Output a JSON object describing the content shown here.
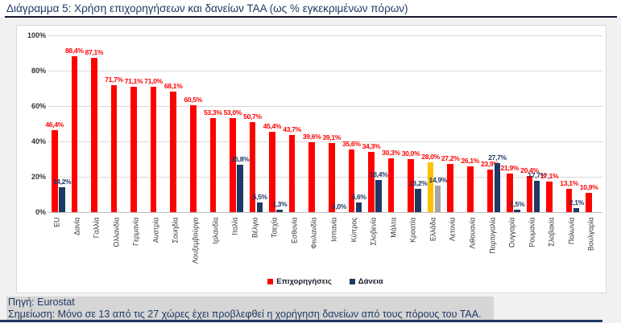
{
  "title": "Διάγραμμα 5: Χρήση επιχορηγήσεων και δανείων ΤΑΑ (ως % εγκεκριμένων πόρων)",
  "legend": {
    "grants": "Επιχορηγήσεις",
    "loans": "Δάνεια"
  },
  "colors": {
    "grants": "#FF0000",
    "loans": "#1F3864",
    "grants_highlight": "#FFC000",
    "loans_highlight": "#A6A6A6",
    "grid": "#D9D9D9",
    "accent_text": "#1F3864"
  },
  "footer": {
    "source": "Πηγή: Eurostat",
    "note": "Σημείωση: Μόνο σε 13 από τις 27 χώρες έχει προβλεφθεί η χορήγηση δανείων από τους πόρους του ΤΑΑ."
  },
  "chart_data": {
    "type": "bar",
    "title": "Διάγραμμα 5: Χρήση επιχορηγήσεων και δανείων ΤΑΑ (ως % εγκεκριμένων πόρων)",
    "xlabel": "",
    "ylabel": "",
    "ylim": [
      0,
      100
    ],
    "grid": true,
    "legend_position": "bottom",
    "value_format": "comma-decimal-percent",
    "ytick_values": [
      0,
      20,
      40,
      60,
      80,
      100
    ],
    "ytick_labels": [
      "0%",
      "20%",
      "40%",
      "60%",
      "80%",
      "100%"
    ],
    "highlight_category": "Ελλάδα",
    "categories": [
      "EU",
      "Δανία",
      "Γαλλία",
      "Ολλανδία",
      "Γερμανία",
      "Αυστρία",
      "Σουηδία",
      "Λουξεμβούργο",
      "Ιρλανδία",
      "Ιταλία",
      "Βέλγιο",
      "Τσεχία",
      "Εσθονία",
      "Φινλανδία",
      "Ισπανία",
      "Κύπρος",
      "Σλοβενία",
      "Μάλτα",
      "Κροατία",
      "Ελλάδα",
      "Λετονία",
      "Λιθουανία",
      "Πορτογαλία",
      "Ουγγαρία",
      "Ρουμανία",
      "Σλοβακία",
      "Πολωνία",
      "Βουλγαρία"
    ],
    "series": [
      {
        "name": "Επιχορηγήσεις",
        "values": [
          46.4,
          88.4,
          87.1,
          71.7,
          71.1,
          71.0,
          68.1,
          60.5,
          53.3,
          53.0,
          50.7,
          45.4,
          43.7,
          39.6,
          39.1,
          35.6,
          34.3,
          30.3,
          30.0,
          28.0,
          27.2,
          26.1,
          23.9,
          21.9,
          20.4,
          17.1,
          13.1,
          10.9
        ]
      },
      {
        "name": "Δάνεια",
        "values": [
          14.2,
          null,
          null,
          null,
          null,
          null,
          null,
          null,
          null,
          26.8,
          5.5,
          1.3,
          null,
          null,
          0.0,
          5.6,
          18.4,
          null,
          13.2,
          14.9,
          null,
          null,
          27.7,
          1.5,
          17.7,
          null,
          2.1,
          null
        ]
      }
    ]
  }
}
